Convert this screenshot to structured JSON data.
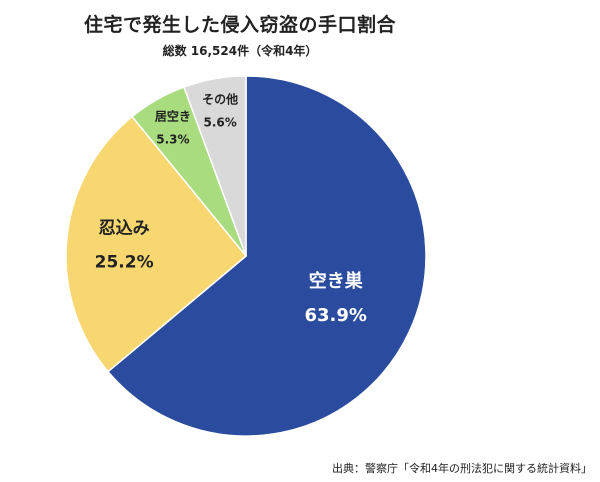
{
  "title": "住宅で発生した侵入窃盗の手口割合",
  "subtitle": "総数 16,524件（令和4年）",
  "source": "出典：警察庁「令和4年の刑法犯に関する統計資料」",
  "chart_data": {
    "type": "pie",
    "title": "住宅で発生した侵入窃盗の手口割合",
    "subtitle": "総数 16,524件（令和4年）",
    "slices": [
      {
        "name": "空き巣",
        "value": 63.9,
        "label": "63.9%",
        "color": "#2B4C9E",
        "text_color": "#ffffff"
      },
      {
        "name": "忍込み",
        "value": 25.2,
        "label": "25.2%",
        "color": "#F8D771",
        "text_color": "#222222"
      },
      {
        "name": "居空き",
        "value": 5.3,
        "label": "5.3%",
        "color": "#A9DB7F",
        "text_color": "#222222"
      },
      {
        "name": "その他",
        "value": 5.6,
        "label": "5.6%",
        "color": "#D9D9D9",
        "text_color": "#222222"
      }
    ]
  }
}
